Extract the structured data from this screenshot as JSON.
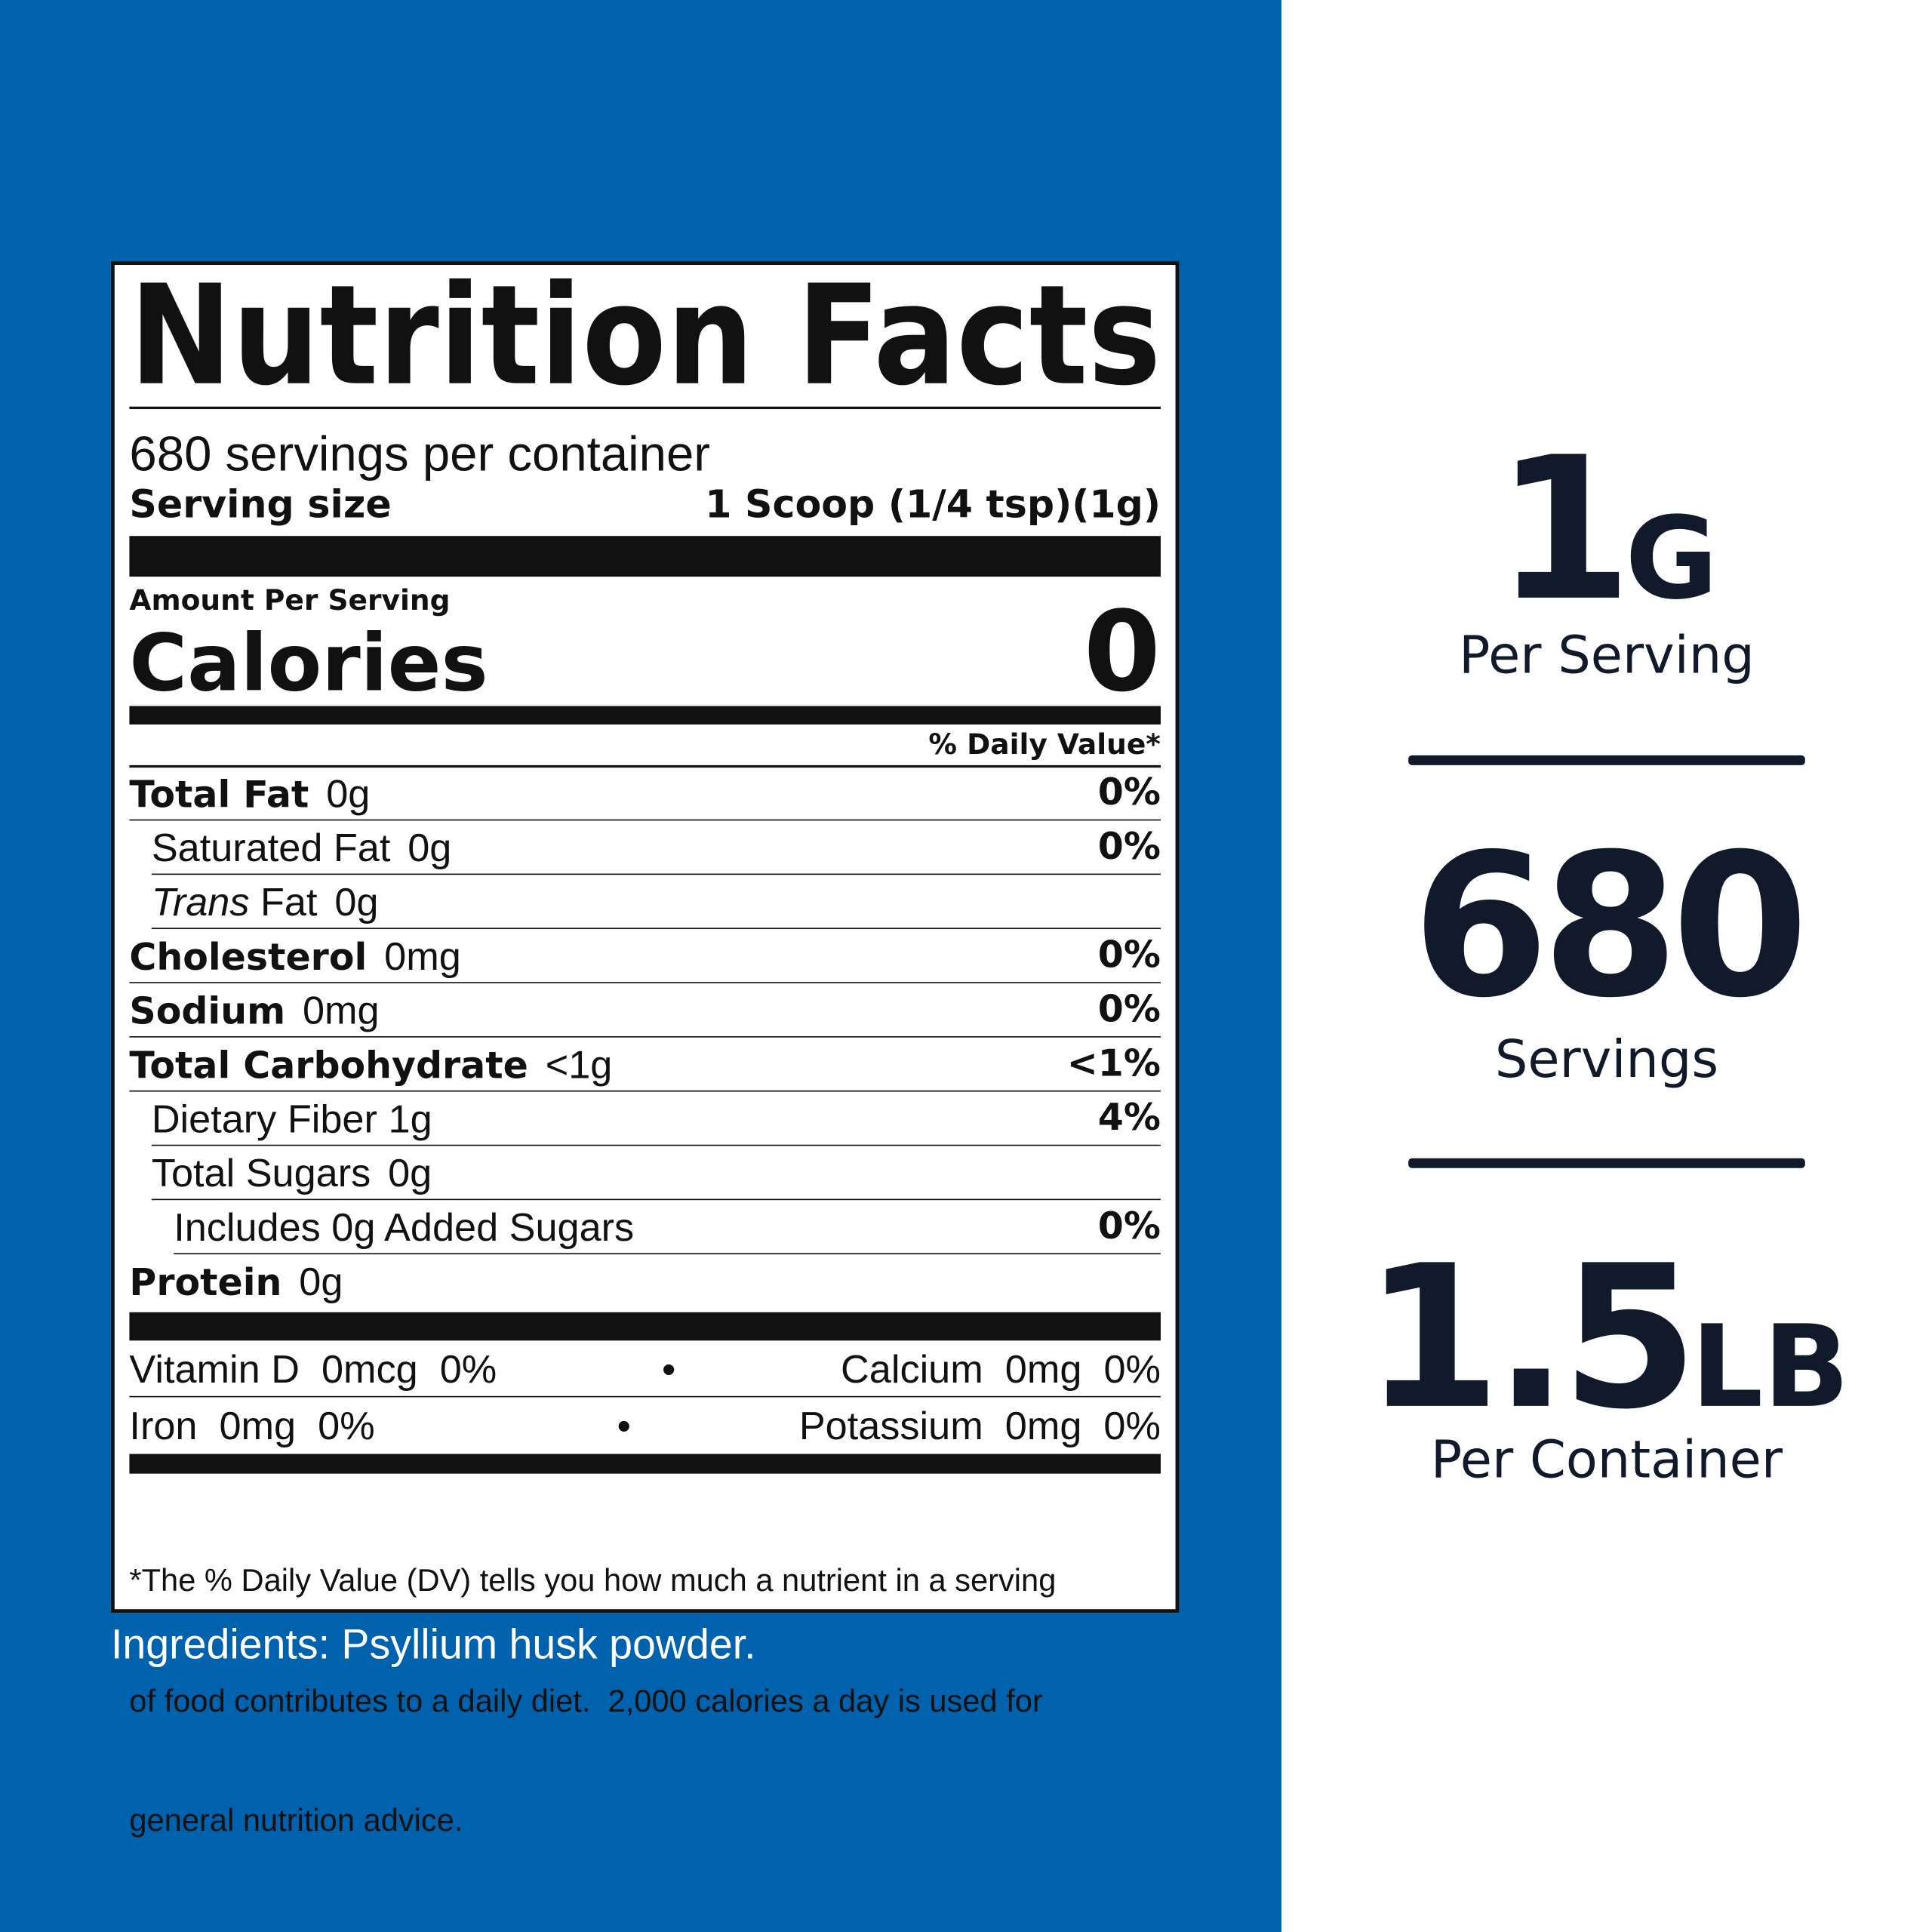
{
  "label": {
    "title": "Nutrition Facts",
    "servings_per_container": "680 servings per container",
    "serving_size_label": "Serving size",
    "serving_size": "1 Scoop (1/4 tsp)(1g)",
    "amount_per_serving": "Amount Per Serving",
    "calories_label": "Calories",
    "calories": 0,
    "daily_value_header": "% Daily Value*",
    "nutrients": [
      {
        "name": "Total Fat",
        "amount": "0g",
        "dv": "0%"
      },
      {
        "name": "Saturated Fat",
        "amount": "0g",
        "dv": "0%"
      },
      {
        "name_italic": "Trans",
        "name": "Fat",
        "amount": "0g"
      },
      {
        "name": "Cholesterol",
        "amount": "0mg",
        "dv": "0%"
      },
      {
        "name": "Sodium",
        "amount": "0mg",
        "dv": "0%"
      },
      {
        "name": "Total Carbohydrate",
        "amount": "<1g",
        "dv": "<1%"
      },
      {
        "name": "Dietary Fiber",
        "amount": "1g",
        "dv": "4%"
      },
      {
        "name": "Total Sugars",
        "amount": "0g"
      },
      {
        "name": "Includes 0g Added Sugars",
        "dv": "0%"
      },
      {
        "name": "Protein",
        "amount": "0g"
      }
    ],
    "vitamins": [
      [
        {
          "name": "Vitamin D",
          "amount": "0mcg",
          "dv": "0%"
        },
        {
          "name": "Calcium",
          "amount": "0mg",
          "dv": "0%"
        }
      ],
      [
        {
          "name": "Iron",
          "amount": "0mg",
          "dv": "0%"
        },
        {
          "name": "Potassium",
          "amount": "0mg",
          "dv": "0%"
        }
      ]
    ],
    "footnote": [
      "*The % Daily Value (DV) tells you how much a nutrient in a serving",
      "of food contributes to a daily diet.  2,000 calories a day is used for",
      "general nutrition advice."
    ]
  },
  "ingredients": "Ingredients: Psyllium husk powder.",
  "highlights": [
    {
      "value": "1",
      "unit": "G",
      "caption": "Per Serving"
    },
    {
      "value": "680",
      "caption": "Servings"
    },
    {
      "value": "1.5",
      "unit": "LB",
      "caption": "Per Container"
    }
  ]
}
